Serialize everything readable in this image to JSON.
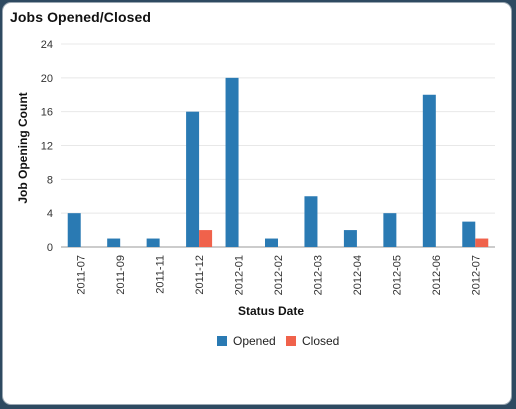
{
  "panel": {
    "title": "Jobs Opened/Closed"
  },
  "colors": {
    "opened": "#2a7ab3",
    "closed": "#f0624b",
    "grid": "#e8e8e8",
    "axis": "#999999"
  },
  "chart_data": {
    "type": "bar",
    "title": "",
    "xlabel": "Status Date",
    "ylabel": "Job Opening Count",
    "categories": [
      "2011-07",
      "2011-09",
      "2011-11",
      "2011-12",
      "2012-01",
      "2012-02",
      "2012-03",
      "2012-04",
      "2012-05",
      "2012-06",
      "2012-07"
    ],
    "series": [
      {
        "name": "Opened",
        "values": [
          4,
          1,
          1,
          16,
          20,
          1,
          6,
          2,
          4,
          18,
          3
        ]
      },
      {
        "name": "Closed",
        "values": [
          0,
          0,
          0,
          2,
          0,
          0,
          0,
          0,
          0,
          0,
          1
        ]
      }
    ],
    "ylim": [
      0,
      24
    ],
    "yticks": [
      0,
      4,
      8,
      12,
      16,
      20,
      24
    ],
    "grid": true,
    "legend": "bottom"
  }
}
